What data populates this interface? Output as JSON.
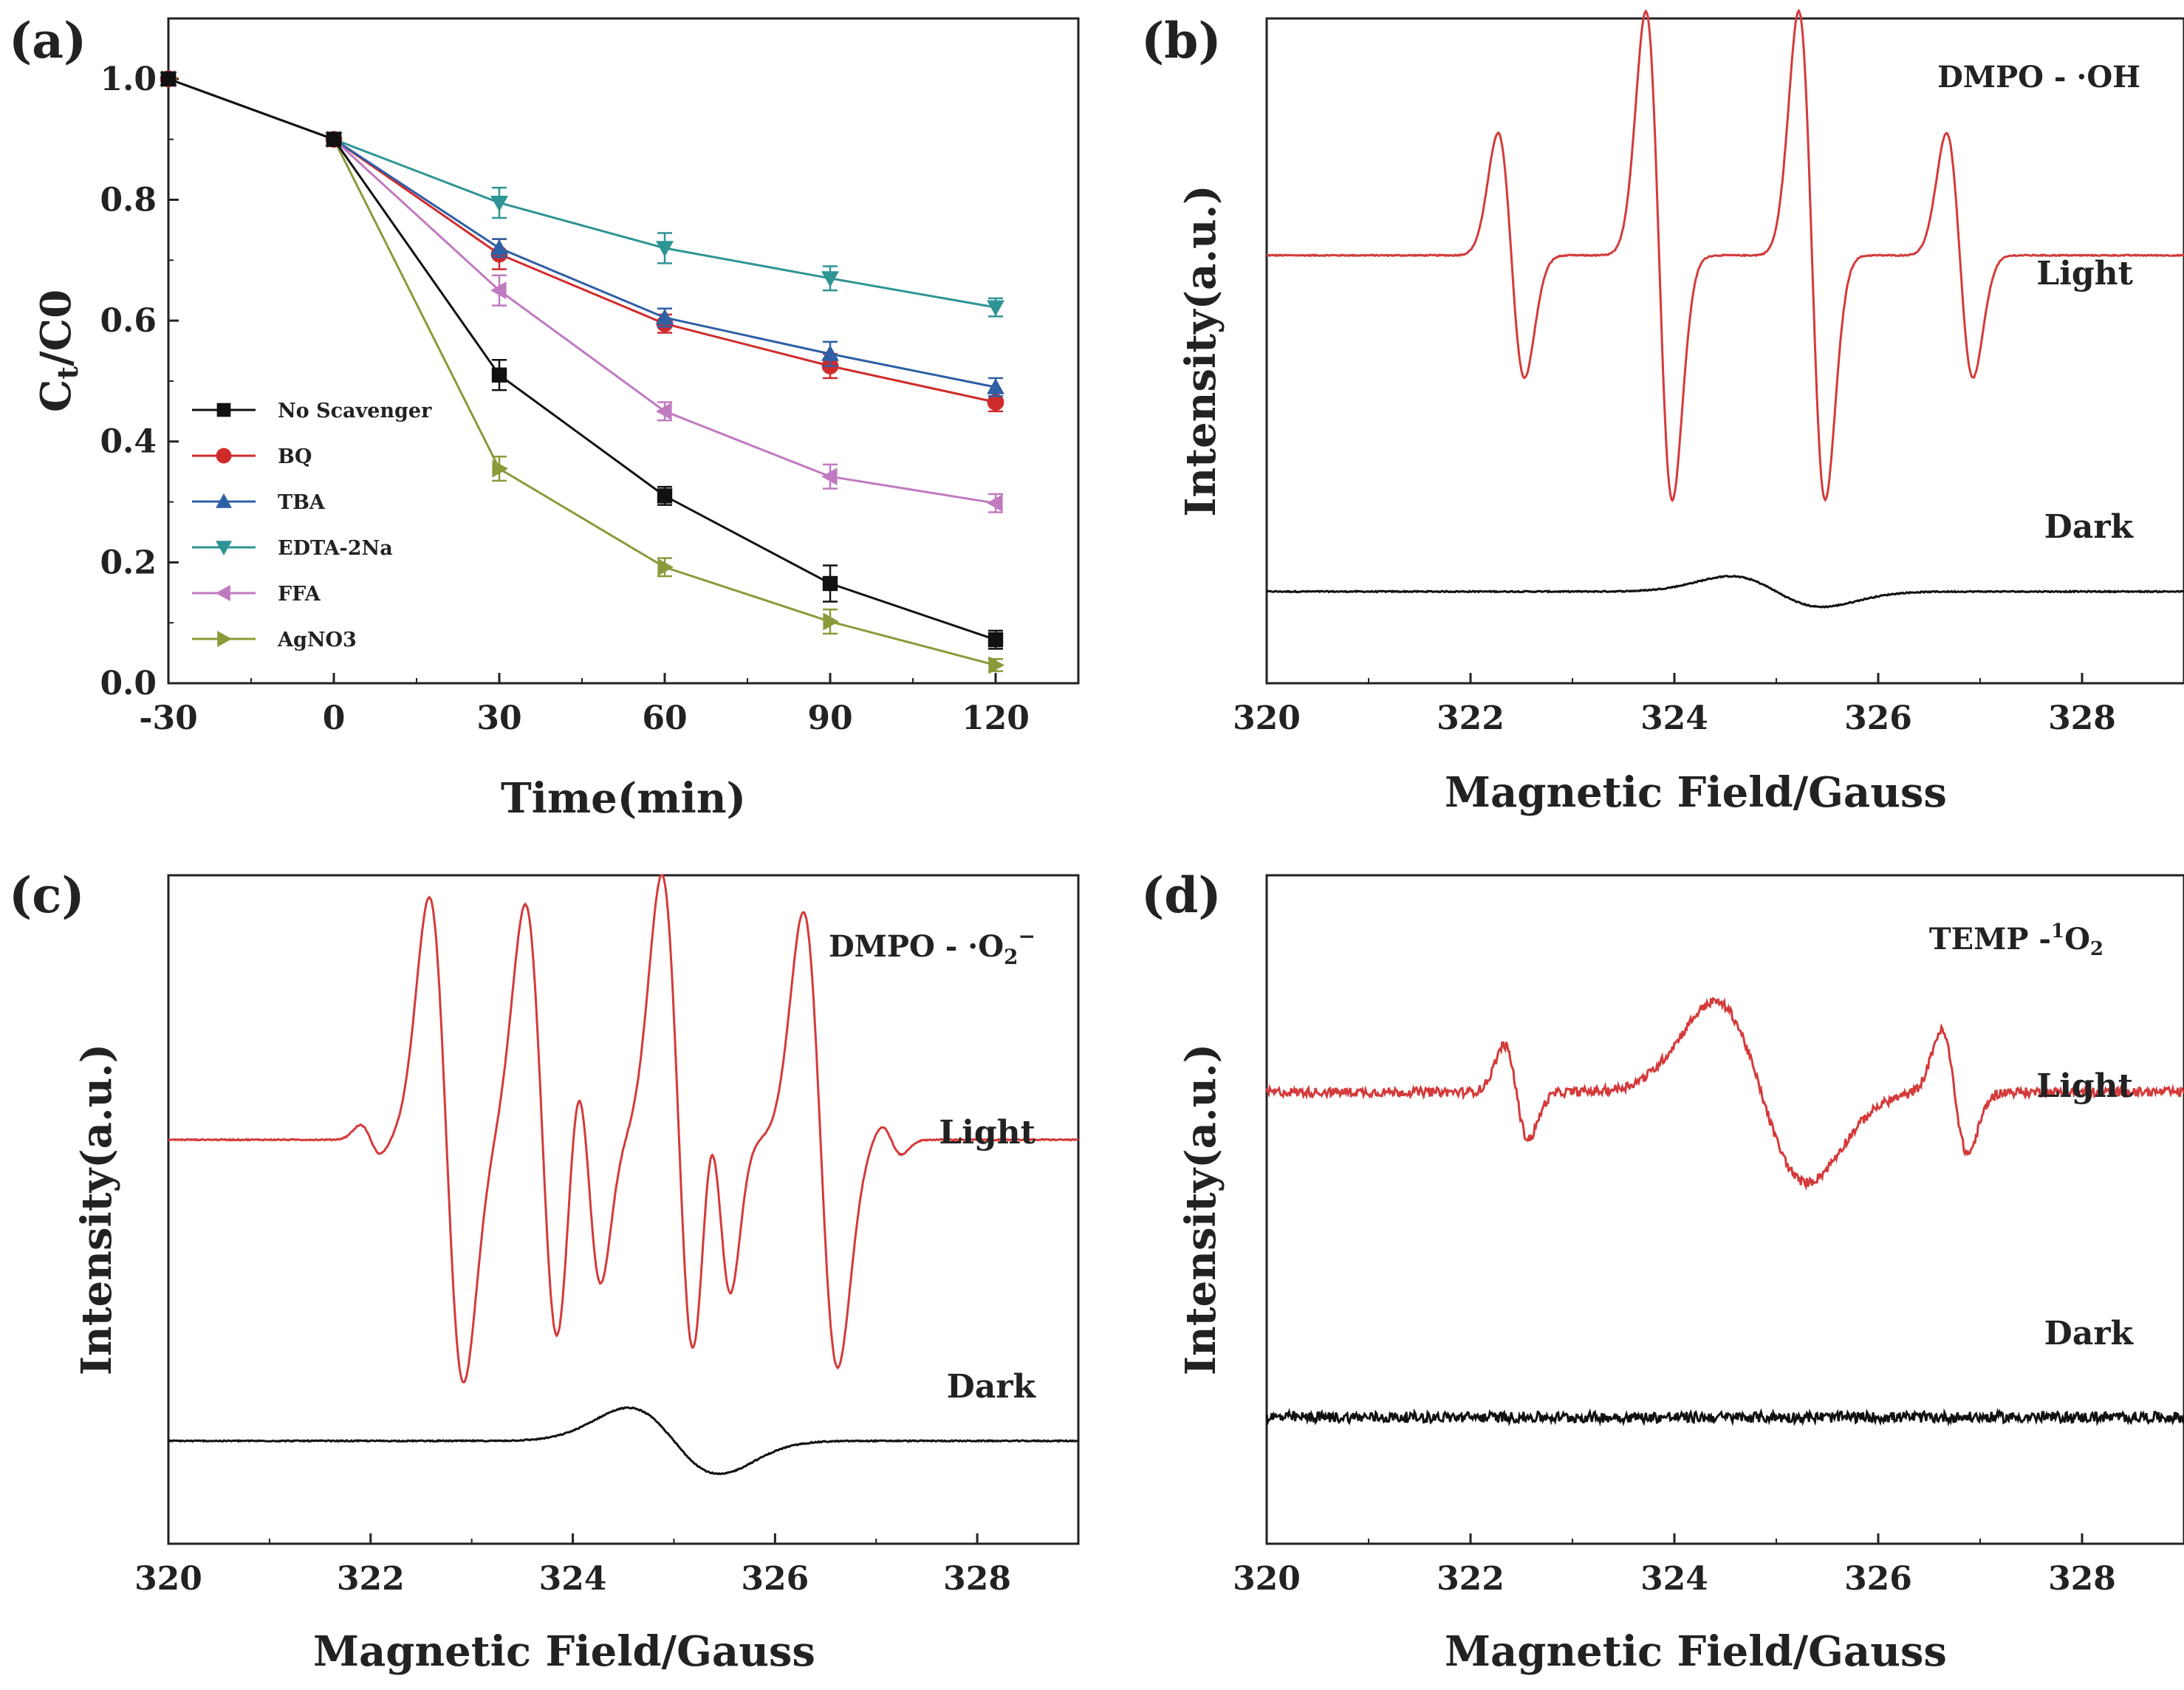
{
  "colors": {
    "axis": "#222222",
    "light_trace": "#d43a3a",
    "dark_trace": "#111111",
    "no_scavenger": "#111111",
    "bq": "#d02b2b",
    "tba": "#2f5fa5",
    "edta": "#2e9494",
    "ffa": "#c07ac0",
    "agno3": "#8a9a3a"
  },
  "chart_data": [
    {
      "panel": "(a)",
      "type": "line",
      "xlabel": "Time(min)",
      "ylabel_main": "C",
      "ylabel_sub1": "t",
      "ylabel_mid": "/C",
      "ylabel_sub2": "0",
      "x": [
        -30,
        0,
        30,
        60,
        90,
        120
      ],
      "xticks": [
        "-30",
        "0",
        "30",
        "60",
        "90",
        "120"
      ],
      "xlim": [
        -30,
        135
      ],
      "ylim": [
        0,
        1.1
      ],
      "yticks": [
        "0.0",
        "0.2",
        "0.4",
        "0.6",
        "0.8",
        "1.0"
      ],
      "legend_position": "center-left",
      "series": [
        {
          "name": "No Scavenger",
          "marker": "square",
          "color": "#111111",
          "values": [
            1.0,
            0.9,
            0.51,
            0.31,
            0.165,
            0.072
          ],
          "errors": [
            0,
            0,
            0.025,
            0.015,
            0.03,
            0.015
          ]
        },
        {
          "name": "BQ",
          "marker": "circle",
          "color": "#d02b2b",
          "values": [
            1.0,
            0.9,
            0.71,
            0.595,
            0.525,
            0.465
          ],
          "errors": [
            0,
            0,
            0.025,
            0.015,
            0.02,
            0.015
          ]
        },
        {
          "name": "TBA",
          "marker": "triangle-up",
          "color": "#2f5fa5",
          "values": [
            1.0,
            0.9,
            0.72,
            0.605,
            0.545,
            0.49
          ],
          "errors": [
            0,
            0,
            0.015,
            0.015,
            0.02,
            0.015
          ]
        },
        {
          "name": "EDTA-2Na",
          "marker": "triangle-down",
          "color": "#2e9494",
          "values": [
            1.0,
            0.9,
            0.795,
            0.72,
            0.67,
            0.622
          ],
          "errors": [
            0,
            0,
            0.025,
            0.025,
            0.02,
            0.015
          ]
        },
        {
          "name": "FFA",
          "marker": "triangle-left",
          "color": "#c07ac0",
          "values": [
            1.0,
            0.9,
            0.65,
            0.45,
            0.342,
            0.298
          ],
          "errors": [
            0,
            0,
            0.025,
            0.015,
            0.02,
            0.015
          ]
        },
        {
          "name": "AgNO3",
          "marker": "triangle-right",
          "color": "#8a9a3a",
          "values": [
            1.0,
            0.9,
            0.355,
            0.192,
            0.102,
            0.03
          ],
          "errors": [
            0,
            0,
            0.02,
            0.015,
            0.02,
            0.01
          ]
        }
      ]
    },
    {
      "panel": "(b)",
      "type": "line",
      "species": "DMPO - ·OH",
      "xlabel": "Magnetic Field/Gauss",
      "ylabel": "Intensity(a.u.)",
      "xlim": [
        320,
        329
      ],
      "xticks": [
        "320",
        "322",
        "324",
        "326",
        "328"
      ],
      "light_label": "Light",
      "dark_label": "Dark",
      "light_baseline": 0.0,
      "dark_baseline": -0.88,
      "light_lines": [
        {
          "center": 322.4,
          "width": 0.13,
          "amp": 0.32
        },
        {
          "center": 323.85,
          "width": 0.13,
          "amp": 0.64
        },
        {
          "center": 325.35,
          "width": 0.13,
          "amp": 0.64
        },
        {
          "center": 326.8,
          "width": 0.13,
          "amp": 0.32
        }
      ],
      "dark_lines": [
        {
          "center": 325.0,
          "width": 0.45,
          "amp": 0.04
        }
      ],
      "y_range": [
        -1.12,
        0.62
      ]
    },
    {
      "panel": "(c)",
      "type": "line",
      "species_main": "DMPO - ·O",
      "species_sub": "2",
      "species_sup": "−",
      "xlabel": "Magnetic Field/Gauss",
      "ylabel": "Intensity(a.u.)",
      "xlim": [
        320,
        329
      ],
      "xticks": [
        "320",
        "322",
        "324",
        "326",
        "328"
      ],
      "light_label": "Light",
      "dark_label": "Dark",
      "light_baseline": 0.0,
      "dark_baseline": -0.82,
      "light_lines": [
        {
          "center": 322.0,
          "width": 0.1,
          "amp": 0.04
        },
        {
          "center": 322.75,
          "width": 0.17,
          "amp": 0.66
        },
        {
          "center": 323.7,
          "width": 0.17,
          "amp": 0.64
        },
        {
          "center": 324.15,
          "width": 0.13,
          "amp": 0.38
        },
        {
          "center": 325.05,
          "width": 0.17,
          "amp": 0.72
        },
        {
          "center": 325.45,
          "width": 0.12,
          "amp": 0.38
        },
        {
          "center": 326.45,
          "width": 0.17,
          "amp": 0.62
        },
        {
          "center": 327.15,
          "width": 0.1,
          "amp": 0.04
        }
      ],
      "dark_lines": [
        {
          "center": 325.0,
          "width": 0.45,
          "amp": 0.09
        }
      ],
      "y_range": [
        -1.1,
        0.72
      ]
    },
    {
      "panel": "(d)",
      "type": "line",
      "species_main": "TEMP -",
      "species_sup": "1",
      "species_tail": "O",
      "species_sub": "2",
      "xlabel": "Magnetic Field/Gauss",
      "ylabel": "Intensity(a.u.)",
      "xlim": [
        320,
        329
      ],
      "xticks": [
        "320",
        "322",
        "324",
        "326",
        "328"
      ],
      "light_label": "Light",
      "dark_label": "Dark",
      "light_baseline": 0.0,
      "dark_baseline": -0.9,
      "light_lines": [
        {
          "center": 322.45,
          "width": 0.12,
          "amp": 0.13
        },
        {
          "center": 324.85,
          "width": 0.45,
          "amp": 0.25
        },
        {
          "center": 326.75,
          "width": 0.13,
          "amp": 0.17
        }
      ],
      "dark_lines": [
        {
          "center": 325.0,
          "width": 0.6,
          "amp": 0.0
        }
      ],
      "noise_light": 0.025,
      "noise_dark": 0.03,
      "y_range": [
        -1.25,
        0.6
      ]
    }
  ]
}
